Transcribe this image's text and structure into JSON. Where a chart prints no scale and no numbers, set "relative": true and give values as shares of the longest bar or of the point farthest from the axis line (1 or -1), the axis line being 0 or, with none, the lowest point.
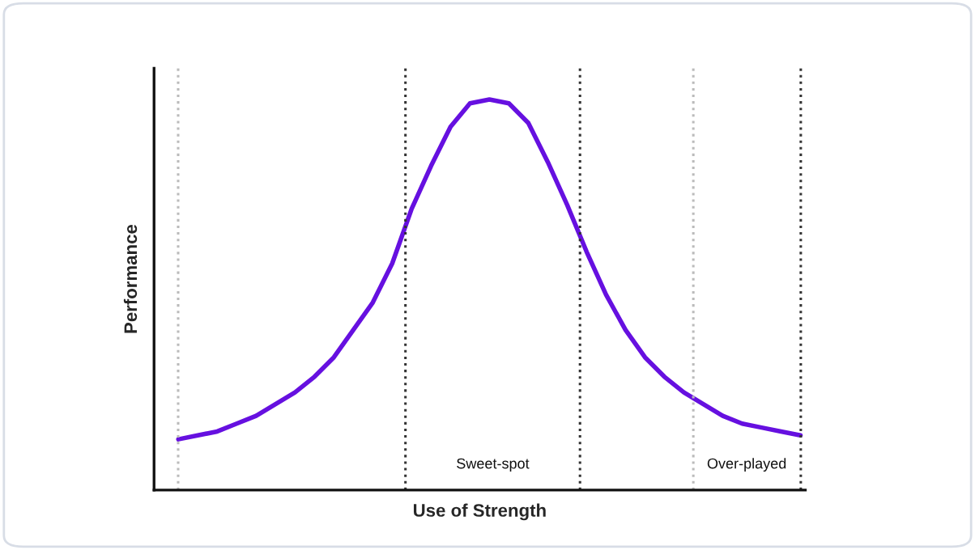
{
  "chart_data": {
    "type": "line",
    "xlabel": "Use of Strength",
    "ylabel": "Performance",
    "relative": true,
    "categories": [
      null,
      null,
      null,
      null,
      null,
      null,
      null,
      null,
      null,
      null,
      null,
      null,
      null,
      null,
      null,
      null,
      null,
      null,
      null,
      null,
      null,
      null,
      null,
      null,
      null,
      null,
      null,
      null,
      null,
      null,
      null,
      null,
      null
    ],
    "series": [
      {
        "color": "#6610e0",
        "values": [
          0.13,
          0.14,
          0.15,
          0.17,
          0.19,
          0.22,
          0.25,
          0.29,
          0.34,
          0.41,
          0.48,
          0.58,
          0.72,
          0.83,
          0.93,
          0.99,
          1,
          0.99,
          0.94,
          0.84,
          0.73,
          0.61,
          0.5,
          0.41,
          0.34,
          0.29,
          0.25,
          0.22,
          0.19,
          0.17,
          0.16,
          0.15,
          0.14
        ]
      }
    ],
    "annotations": [
      "Sweet-spot",
      "Over-played"
    ],
    "legend": false,
    "marker": "none",
    "line_style": "solid"
  }
}
